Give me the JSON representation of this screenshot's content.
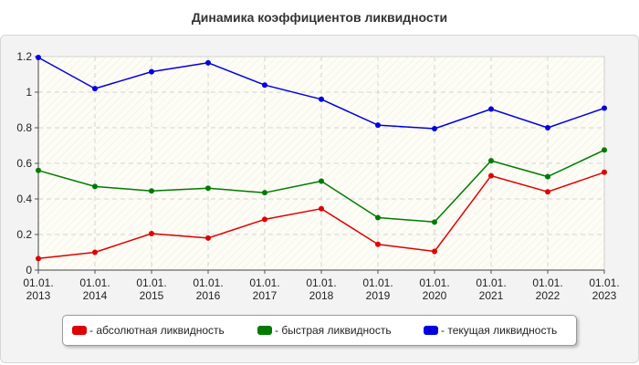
{
  "chart_data": {
    "type": "line",
    "title": "Динамика коэффициентов ликвидности",
    "xlabel": "",
    "ylabel": "",
    "categories": [
      [
        "01.01.",
        "2013"
      ],
      [
        "01.01.",
        "2014"
      ],
      [
        "01.01.",
        "2015"
      ],
      [
        "01.01.",
        "2016"
      ],
      [
        "01.01.",
        "2017"
      ],
      [
        "01.01.",
        "2018"
      ],
      [
        "01.01.",
        "2019"
      ],
      [
        "01.01.",
        "2020"
      ],
      [
        "01.01.",
        "2021"
      ],
      [
        "01.01.",
        "2022"
      ],
      [
        "01.01.",
        "2023"
      ]
    ],
    "ylim": [
      0,
      1.2
    ],
    "yticks": [
      0,
      0.2,
      0.4,
      0.6,
      0.8,
      1,
      1.2
    ],
    "ytick_labels": [
      "0",
      "0.2",
      "0.4",
      "0.6",
      "0.8",
      "1",
      "1.2"
    ],
    "grid": true,
    "legend_position": "bottom",
    "series": [
      {
        "name": "- абсолютная ликвидность",
        "color": "#e00000",
        "values": [
          0.065,
          0.1,
          0.205,
          0.18,
          0.285,
          0.345,
          0.145,
          0.105,
          0.53,
          0.44,
          0.55
        ]
      },
      {
        "name": "- быстрая ликвидность",
        "color": "#007a00",
        "values": [
          0.56,
          0.47,
          0.445,
          0.46,
          0.435,
          0.5,
          0.295,
          0.27,
          0.615,
          0.525,
          0.675
        ]
      },
      {
        "name": "- текущая ликвидность",
        "color": "#0000e0",
        "values": [
          1.195,
          1.02,
          1.115,
          1.165,
          1.04,
          0.96,
          0.815,
          0.795,
          0.905,
          0.8,
          0.91
        ]
      }
    ]
  }
}
